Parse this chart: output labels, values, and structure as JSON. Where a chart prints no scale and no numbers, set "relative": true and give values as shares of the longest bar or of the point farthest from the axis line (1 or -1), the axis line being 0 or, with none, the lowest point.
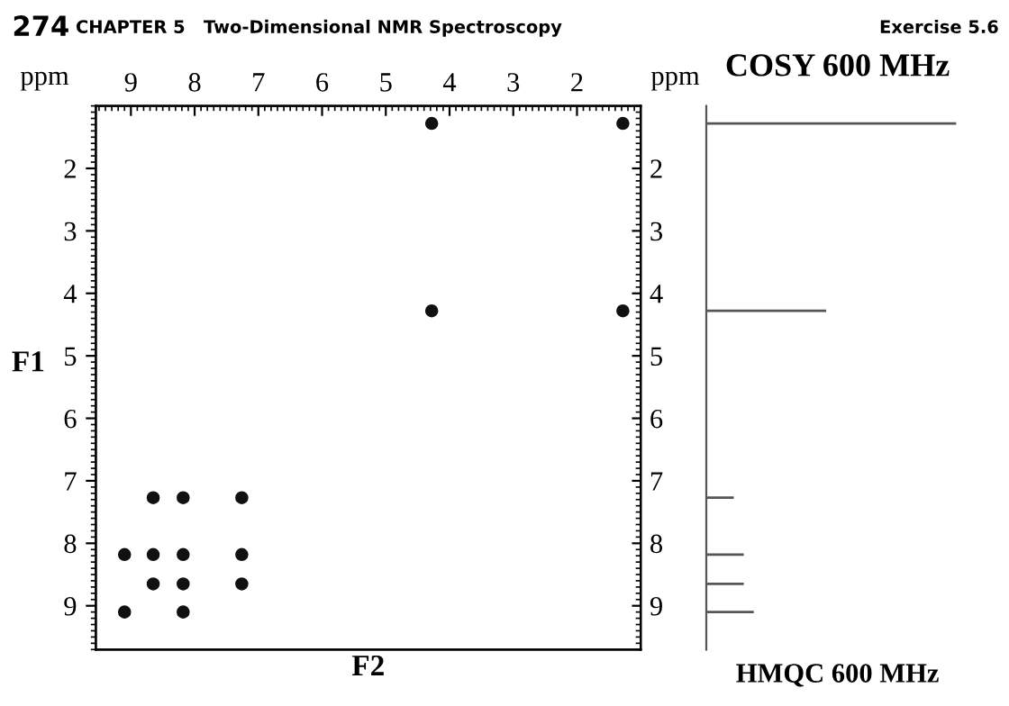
{
  "chart_data": [
    {
      "type": "scatter",
      "xlabel": "F2",
      "ylabel": "F1",
      "annotations": [
        "274",
        "CHAPTER 5   Two-Dimensional NMR Spectroscopy",
        "Exercise 5.6",
        "ppm",
        "ppm"
      ],
      "xlim": [
        9.55,
        1.0
      ],
      "xticks": [
        9,
        8,
        7,
        6,
        5,
        4,
        3,
        2
      ],
      "ylim": [
        9.7,
        1.0
      ],
      "yticks": [
        2,
        3,
        4,
        5,
        6,
        7,
        8,
        9
      ],
      "y2lim": [
        9.7,
        1.0
      ],
      "y2ticks": [
        2,
        3,
        4,
        5,
        6,
        7,
        8,
        9
      ],
      "marker": "circle",
      "series": [
        {
          "color": "#111111",
          "x": [
            4.28,
            1.28,
            4.28,
            1.28,
            8.65,
            8.18,
            7.26,
            9.1,
            8.65,
            8.18,
            7.26,
            8.65,
            8.18,
            7.26,
            9.1,
            8.18
          ],
          "values": [
            1.28,
            1.28,
            4.28,
            4.28,
            7.27,
            7.27,
            7.27,
            8.18,
            8.18,
            8.18,
            8.18,
            8.65,
            8.65,
            8.65,
            9.1,
            9.1
          ]
        }
      ]
    },
    {
      "type": "bar",
      "orientation": "horizontal",
      "relative": true,
      "title": "COSY 600 MHz",
      "annotations": [
        "HMQC 600 MHz"
      ],
      "tick_labels": false,
      "ylim": [
        9.7,
        1.0
      ],
      "x": [
        1.28,
        4.28,
        7.27,
        8.18,
        8.65,
        9.1
      ],
      "series": [
        {
          "color": "#555555",
          "values": [
            1,
            0.48,
            0.11,
            0.15,
            0.15,
            0.19
          ]
        }
      ]
    }
  ]
}
